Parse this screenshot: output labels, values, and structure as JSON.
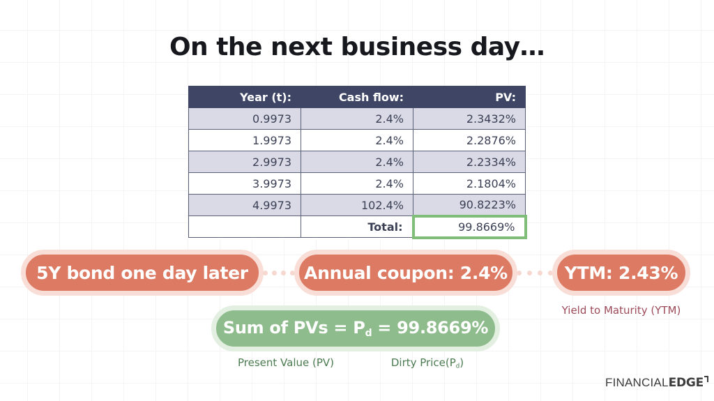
{
  "slide": {
    "title": "On the next business day…"
  },
  "table": {
    "headers": [
      "Year (t):",
      "Cash flow:",
      "PV:"
    ],
    "rows": [
      [
        "0.9973",
        "2.4%",
        "2.3432%"
      ],
      [
        "1.9973",
        "2.4%",
        "2.2876%"
      ],
      [
        "2.9973",
        "2.4%",
        "2.2334%"
      ],
      [
        "3.9973",
        "2.4%",
        "2.1804%"
      ],
      [
        "4.9973",
        "102.4%",
        "90.8223%"
      ]
    ],
    "total_label": "Total:",
    "total_value": "99.8669%"
  },
  "pills": {
    "bond_label": "5Y bond one day later",
    "coupon_label": "Annual coupon: 2.4%",
    "ytm_label": "YTM: 2.43%",
    "sum_prefix": "Sum of PVs = P",
    "sum_subscript": "d",
    "sum_suffix": " = 99.8669%"
  },
  "notes": {
    "ytm": "Yield to Maturity (YTM)",
    "present_value": "Present Value (PV)",
    "dirty_prefix": "Dirty Price(P",
    "dirty_subscript": "d",
    "dirty_suffix": ")"
  },
  "logo": {
    "thin": "FINANCIAL",
    "bold": "EDGE"
  },
  "colors": {
    "accent_salmon": "#DD7A63",
    "salmon_ring": "#F8DED7",
    "accent_green": "#8EBC8C",
    "green_ring": "#E2EFE1",
    "connector_dots": "#F6D8D0",
    "header_navy": "#3F4565",
    "row_lavender": "#D9DAE6",
    "table_border": "#5A5F78",
    "total_border": "#7FBD79",
    "note_red": "#9D4A59",
    "note_green": "#4B7B50",
    "title_color": "#17181D"
  }
}
